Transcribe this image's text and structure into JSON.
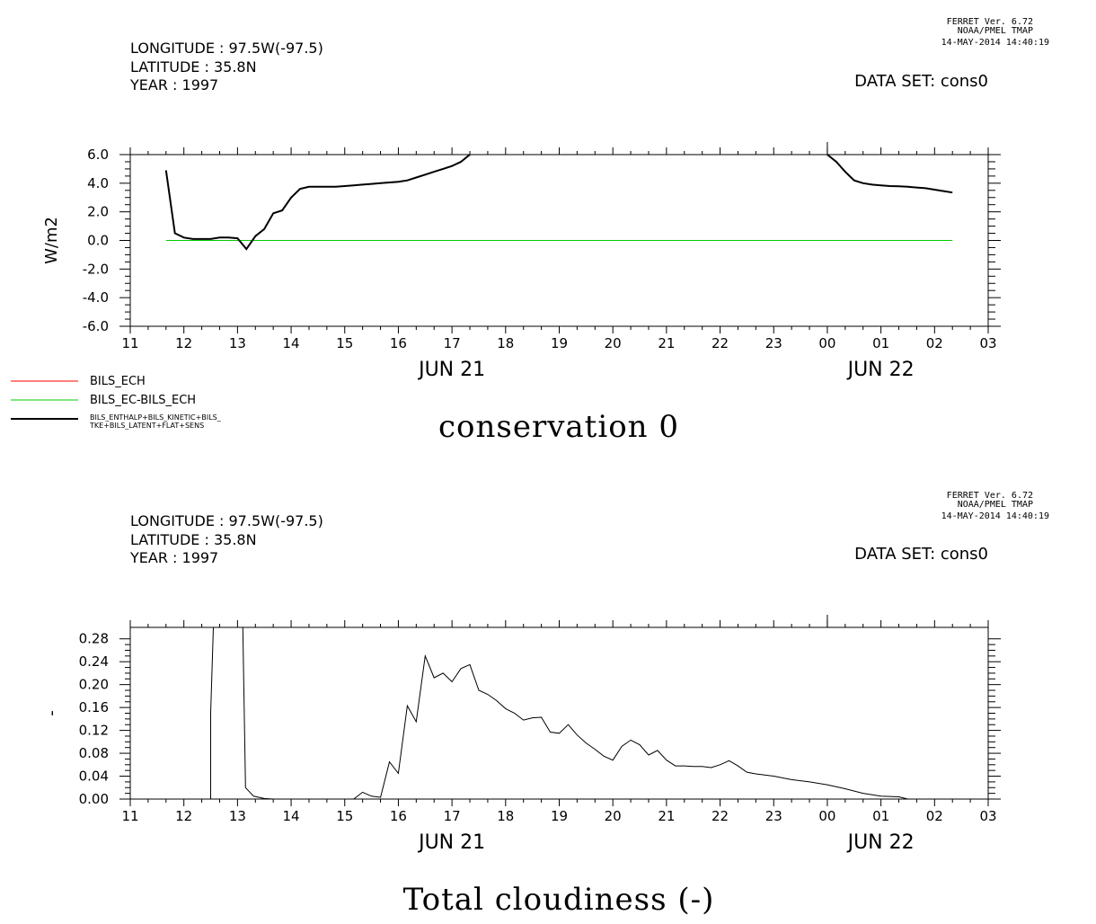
{
  "panels": [
    {
      "ferret": [
        "FERRET Ver. 6.72",
        "NOAA/PMEL TMAP",
        "14-MAY-2014 14:40:19"
      ],
      "header": [
        "LONGITUDE : 97.5W(-97.5)",
        "LATITUDE : 35.8N",
        "YEAR : 1997"
      ],
      "dataset": "DATA SET: cons0",
      "title": "conservation 0"
    },
    {
      "ferret": [
        "FERRET Ver. 6.72",
        "NOAA/PMEL TMAP",
        "14-MAY-2014 14:40:19"
      ],
      "header": [
        "LONGITUDE : 97.5W(-97.5)",
        "LATITUDE : 35.8N",
        "YEAR : 1997"
      ],
      "dataset": "DATA SET: cons0",
      "title": "Total cloudiness (-)"
    }
  ],
  "chart_data": [
    {
      "type": "line",
      "title": "conservation 0",
      "ylabel": "W/m2",
      "xlabel": "",
      "xlim": [
        11,
        27
      ],
      "ylim": [
        -6.0,
        6.0
      ],
      "x_tick_labels": [
        "11",
        "12",
        "13",
        "14",
        "15",
        "16",
        "17",
        "18",
        "19",
        "20",
        "21",
        "22",
        "23",
        "00",
        "01",
        "02",
        "03"
      ],
      "x_date_labels": [
        {
          "text": "JUN 21",
          "x": 17
        },
        {
          "text": "JUN 22",
          "x": 25
        }
      ],
      "y_tick_labels": [
        "-6.0",
        "-4.0",
        "-2.0",
        "0.0",
        "2.0",
        "4.0",
        "6.0"
      ],
      "legend": [
        "BILS_ECH",
        "BILS_EC-BILS_ECH",
        "BILS_ENTHALP+BILS_KINETIC+BILS_",
        "TKE+BILS_LATENT+FLAT+SENS"
      ],
      "series": [
        {
          "name": "BILS_ECH",
          "color": "#ff0000",
          "x": [],
          "y": []
        },
        {
          "name": "BILS_EC-BILS_ECH",
          "color": "#00cc00",
          "x": [
            11.667,
            26.333
          ],
          "y": [
            0.0,
            0.0
          ]
        },
        {
          "name": "BILS_ENTHALP+BILS_KINETIC+BILS_TKE+BILS_LATENT+FLAT+SENS",
          "color": "#000000",
          "segments": [
            {
              "x": [
                11.667,
                11.833,
                12.0,
                12.167,
                12.333,
                12.5,
                12.667,
                12.833,
                13.0,
                13.167,
                13.333,
                13.5,
                13.667,
                13.833,
                14.0,
                14.167,
                14.333,
                14.5,
                14.667,
                14.833,
                15.0,
                15.167,
                15.333,
                15.5,
                15.667,
                15.833,
                16.0,
                16.167,
                16.333,
                16.5,
                16.667,
                16.833,
                17.0,
                17.167,
                17.333
              ],
              "y": [
                4.9,
                0.5,
                0.2,
                0.1,
                0.1,
                0.1,
                0.2,
                0.2,
                0.15,
                -0.6,
                0.3,
                0.8,
                1.9,
                2.1,
                3.0,
                3.6,
                3.75,
                3.75,
                3.75,
                3.75,
                3.8,
                3.85,
                3.9,
                3.95,
                4.0,
                4.05,
                4.1,
                4.2,
                4.4,
                4.6,
                4.8,
                5.0,
                5.2,
                5.5,
                6.0
              ]
            },
            {
              "x": [
                24.0,
                24.167,
                24.333,
                24.5,
                24.667,
                24.833,
                25.0,
                25.167,
                25.333,
                25.5,
                25.667,
                25.833,
                26.0,
                26.167,
                26.333
              ],
              "y": [
                6.0,
                5.5,
                4.8,
                4.2,
                4.0,
                3.9,
                3.85,
                3.8,
                3.78,
                3.75,
                3.7,
                3.65,
                3.55,
                3.45,
                3.35
              ]
            }
          ]
        }
      ]
    },
    {
      "type": "line",
      "title": "Total cloudiness (-)",
      "ylabel": "-",
      "xlabel": "",
      "xlim": [
        11,
        27
      ],
      "ylim": [
        0.0,
        0.3
      ],
      "x_tick_labels": [
        "11",
        "12",
        "13",
        "14",
        "15",
        "16",
        "17",
        "18",
        "19",
        "20",
        "21",
        "22",
        "23",
        "00",
        "01",
        "02",
        "03"
      ],
      "x_date_labels": [
        {
          "text": "JUN 21",
          "x": 17
        },
        {
          "text": "JUN 22",
          "x": 25
        }
      ],
      "y_tick_labels": [
        "0.00",
        "0.04",
        "0.08",
        "0.12",
        "0.16",
        "0.20",
        "0.24",
        "0.28"
      ],
      "series": [
        {
          "name": "",
          "color": "#000000",
          "segments": [
            {
              "x": [
                11.667,
                12.167,
                12.5,
                12.5,
                12.55
              ],
              "y": [
                0.0,
                0.0,
                0.0,
                0.15,
                0.3
              ]
            },
            {
              "x": [
                13.1,
                13.15,
                13.3,
                13.5,
                13.667,
                14.0,
                14.5,
                15.0,
                15.167,
                15.333,
                15.5,
                15.667,
                15.833,
                16.0,
                16.167,
                16.333,
                16.5,
                16.667,
                16.833,
                17.0,
                17.167,
                17.333,
                17.5,
                17.667,
                17.833,
                18.0,
                18.167,
                18.333,
                18.5,
                18.667,
                18.833,
                19.0,
                19.167,
                19.333,
                19.5,
                19.667,
                19.833,
                20.0,
                20.167,
                20.333,
                20.5,
                20.667,
                20.833,
                21.0,
                21.167,
                21.333,
                21.5,
                21.667,
                21.833,
                22.0,
                22.167,
                22.333,
                22.5,
                22.667,
                22.833,
                23.0,
                23.333,
                23.667,
                24.0,
                24.333,
                24.667,
                25.0,
                25.333,
                25.5
              ],
              "y": [
                0.3,
                0.02,
                0.005,
                0.001,
                0.0,
                0.0,
                0.0,
                0.0,
                0.0,
                0.012,
                0.005,
                0.003,
                0.065,
                0.045,
                0.163,
                0.135,
                0.25,
                0.212,
                0.22,
                0.205,
                0.228,
                0.235,
                0.19,
                0.183,
                0.172,
                0.158,
                0.15,
                0.138,
                0.142,
                0.143,
                0.117,
                0.115,
                0.13,
                0.112,
                0.098,
                0.087,
                0.075,
                0.068,
                0.092,
                0.103,
                0.095,
                0.077,
                0.085,
                0.068,
                0.058,
                0.058,
                0.057,
                0.057,
                0.055,
                0.06,
                0.067,
                0.058,
                0.047,
                0.044,
                0.042,
                0.04,
                0.034,
                0.03,
                0.025,
                0.018,
                0.01,
                0.005,
                0.004,
                0.0
              ]
            }
          ]
        }
      ]
    }
  ]
}
